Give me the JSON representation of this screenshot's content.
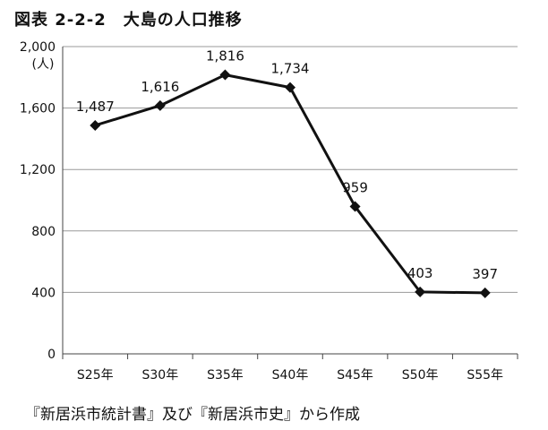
{
  "title": "図表 2-2-2　大島の人口推移",
  "source_note": "『新居浜市統計書』及び『新居浜市史』から作成",
  "chart_data": {
    "type": "line",
    "title": "図表 2-2-2　大島の人口推移",
    "xlabel": "",
    "ylabel": "(人)",
    "categories": [
      "S25年",
      "S30年",
      "S35年",
      "S40年",
      "S45年",
      "S50年",
      "S55年"
    ],
    "series": [
      {
        "values": [
          1487,
          1616,
          1816,
          1734,
          959,
          403,
          397
        ]
      }
    ],
    "data_labels": [
      "1,487",
      "1,616",
      "1,816",
      "1,734",
      "959",
      "403",
      "397"
    ],
    "ylim": [
      0,
      2000
    ],
    "yticks": [
      0,
      400,
      800,
      1200,
      1600,
      2000
    ],
    "ytick_labels": [
      "0",
      "400",
      "800",
      "1,200",
      "1,600",
      "2,000"
    ],
    "marker": "diamond",
    "line_color": "#111111",
    "grid": true,
    "legend": "none"
  }
}
